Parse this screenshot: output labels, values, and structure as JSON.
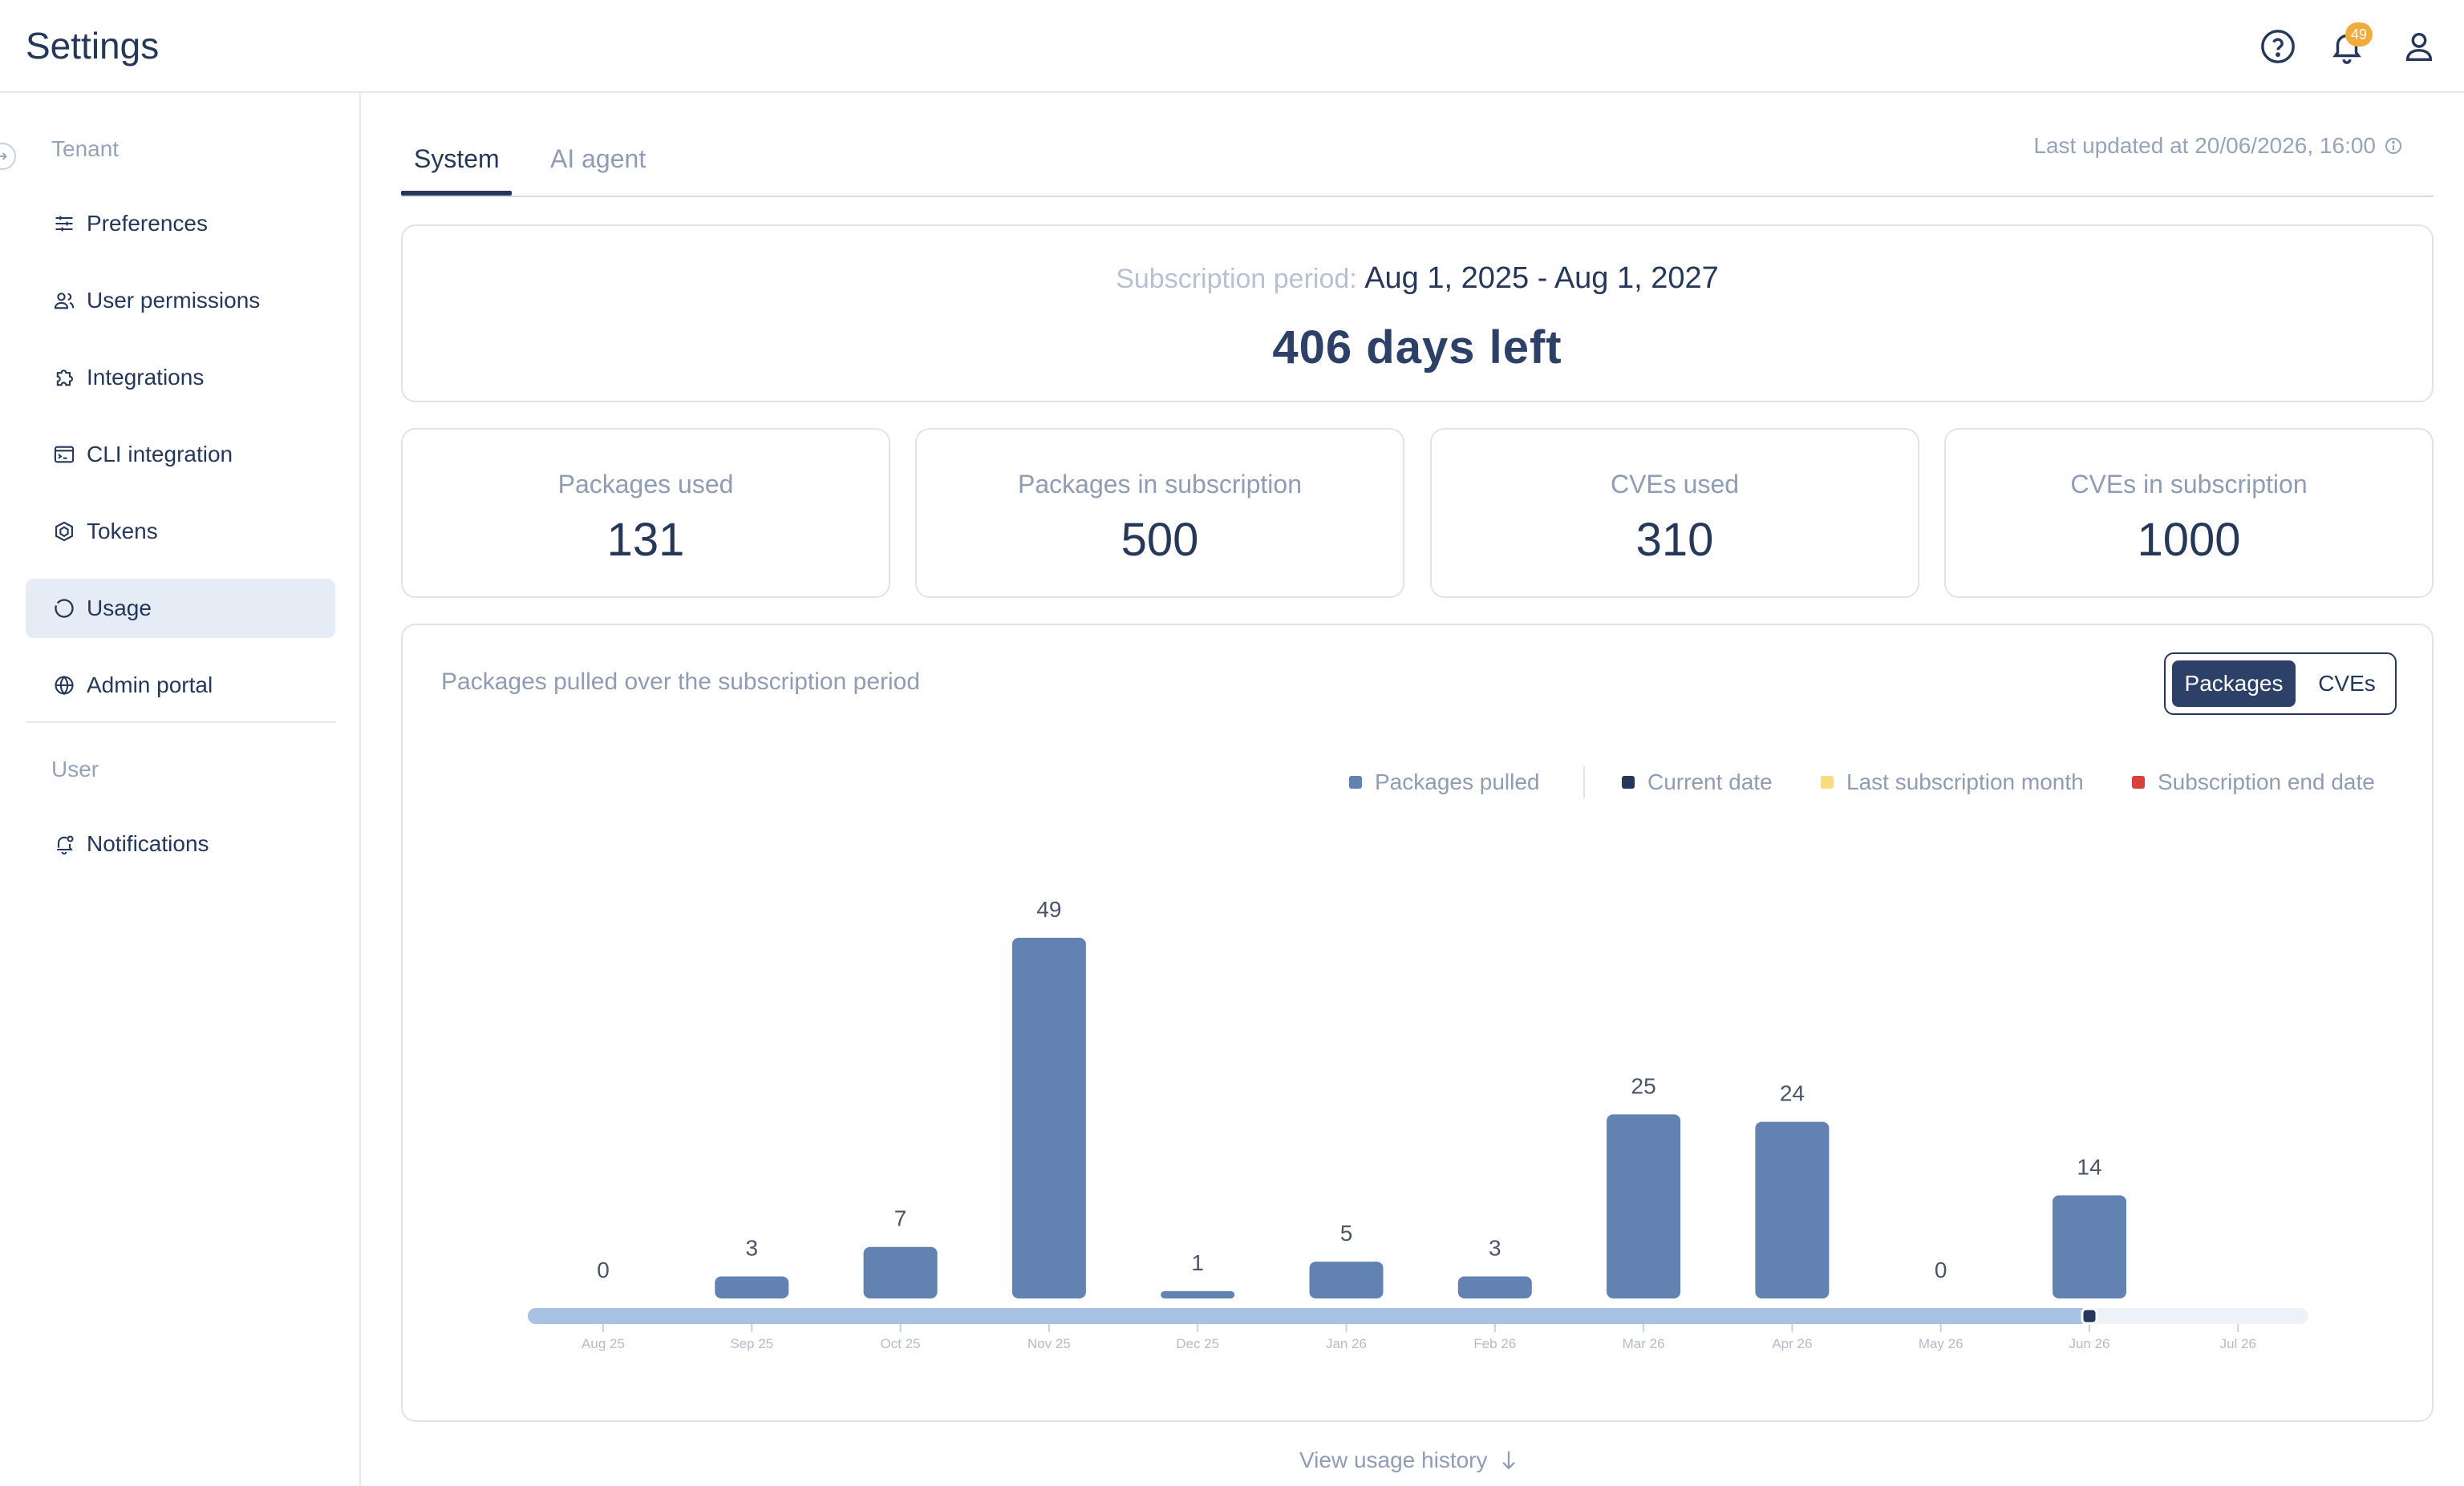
{
  "header": {
    "title": "Settings",
    "notification_count": "49"
  },
  "sidebar": {
    "sections": [
      {
        "label": "Tenant"
      },
      {
        "label": "User"
      }
    ],
    "items": [
      {
        "label": "Preferences",
        "icon": "sliders-icon"
      },
      {
        "label": "User permissions",
        "icon": "users-icon"
      },
      {
        "label": "Integrations",
        "icon": "puzzle-icon"
      },
      {
        "label": "CLI integration",
        "icon": "terminal-icon"
      },
      {
        "label": "Tokens",
        "icon": "token-icon"
      },
      {
        "label": "Usage",
        "icon": "usage-icon",
        "active": true
      },
      {
        "label": "Admin portal",
        "icon": "globe-icon"
      },
      {
        "label": "Notifications",
        "icon": "bell-settings-icon"
      }
    ]
  },
  "tabs": [
    {
      "label": "System",
      "active": true
    },
    {
      "label": "AI agent",
      "active": false
    }
  ],
  "last_updated": "Last updated at 20/06/2026, 16:00",
  "subscription": {
    "label": "Subscription period:",
    "dates": "Aug 1, 2025 - Aug 1, 2027",
    "days_left": "406 days left"
  },
  "stats": [
    {
      "label": "Packages used",
      "value": "131"
    },
    {
      "label": "Packages in subscription",
      "value": "500"
    },
    {
      "label": "CVEs used",
      "value": "310"
    },
    {
      "label": "CVEs in subscription",
      "value": "1000"
    }
  ],
  "chart_section": {
    "title": "Packages pulled over the subscription period",
    "toggle": {
      "on": "Packages",
      "off": "CVEs"
    },
    "legend": [
      {
        "label": "Packages pulled",
        "color": "#6283b1"
      },
      {
        "label": "Current date",
        "color": "#25385a"
      },
      {
        "label": "Last subscription month",
        "color": "#f8dc82"
      },
      {
        "label": "Subscription end date",
        "color": "#d9423a"
      }
    ]
  },
  "chart_data": {
    "type": "bar",
    "categories": [
      "Aug 25",
      "Sep 25",
      "Oct 25",
      "Nov 25",
      "Dec 25",
      "Jan 26",
      "Feb 26",
      "Mar 26",
      "Apr 26",
      "May 26",
      "Jun 26",
      "Jul 26"
    ],
    "series": [
      {
        "name": "Packages pulled",
        "values": [
          0,
          3,
          7,
          49,
          1,
          5,
          3,
          25,
          24,
          0,
          14,
          null
        ]
      }
    ],
    "data_labels": [
      "0",
      "3",
      "7",
      "49",
      "1",
      "5",
      "3",
      "25",
      "24",
      "0",
      "14"
    ],
    "current_date": "Jun 26",
    "bar_color": "#6283b1",
    "timeline_elapsed_color": "#a9c1e3",
    "timeline_remaining_color": "#edf1f8",
    "ylim": [
      0,
      49
    ],
    "grid": false,
    "legend_position": "top-right"
  },
  "footer": {
    "view_history": "View usage history"
  }
}
